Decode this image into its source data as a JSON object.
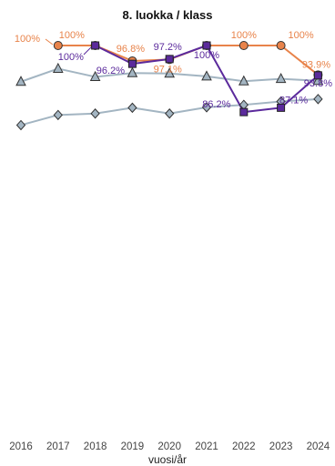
{
  "chart_data": {
    "type": "line",
    "title": "8. luokka / klass",
    "xlabel": "vuosi/år",
    "ylabel": "",
    "x": [
      "2016",
      "2017",
      "2018",
      "2019",
      "2020",
      "2021",
      "2022",
      "2023",
      "2024"
    ],
    "ylim": [
      0,
      108
    ],
    "grid": false,
    "series": [
      {
        "color": "#e8834a",
        "marker": "circle",
        "labels_shown": true,
        "values": [
          null,
          100,
          100,
          96.8,
          97.1,
          100,
          100,
          100,
          93.9
        ],
        "labels": [
          null,
          "100%",
          "100%",
          "96.8%",
          "97.1%",
          "100%",
          "100%",
          "100%",
          "93.9%"
        ],
        "extra_labels": [
          {
            "x": "2016",
            "y": 100,
            "text": "100%"
          }
        ]
      },
      {
        "color": "#5b2a9c",
        "marker": "square",
        "labels_shown": true,
        "values": [
          null,
          null,
          100,
          96.2,
          97.2,
          100,
          86.2,
          87.1,
          93.8
        ],
        "labels": [
          null,
          null,
          "100%",
          "96.2%",
          "97.2%",
          "100%",
          "86.2%",
          "87.1%",
          "93.8%"
        ],
        "extra_labels": [
          {
            "x": "2017",
            "y": 100,
            "text": "100%"
          }
        ]
      },
      {
        "color": "#a3b5c2",
        "marker": "triangle",
        "labels_shown": false,
        "values": [
          92.5,
          95.2,
          93.5,
          94.3,
          94.2,
          93.6,
          92.6,
          93.1,
          92.7
        ]
      },
      {
        "color": "#a3b5c2",
        "marker": "diamond",
        "labels_shown": false,
        "values": [
          83.5,
          85.6,
          85.9,
          87.1,
          85.9,
          87.2,
          87.7,
          88.4,
          88.9
        ]
      }
    ]
  }
}
